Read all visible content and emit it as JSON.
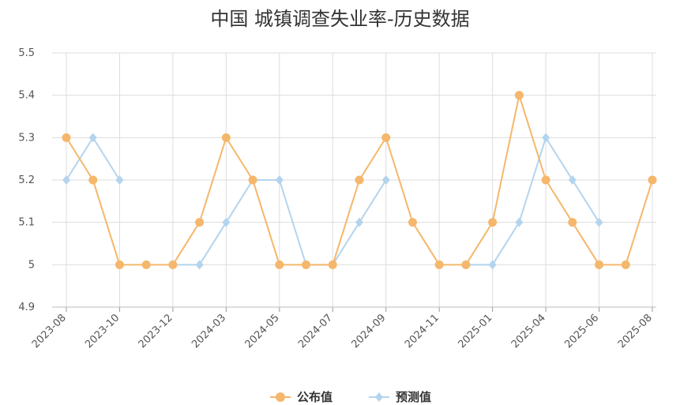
{
  "chart_data": {
    "type": "line",
    "title": "中国 城镇调查失业率-历史数据",
    "categories": [
      "2023-08",
      "2023-09",
      "2023-10",
      "2023-11",
      "2023-12",
      "2024-02",
      "2024-03",
      "2024-04",
      "2024-05",
      "2024-06",
      "2024-07",
      "2024-08",
      "2024-09",
      "2024-10",
      "2024-11",
      "2024-12",
      "2025-01",
      "2025-02",
      "2025-04",
      "2025-05",
      "2025-06",
      "2025-07",
      "2025-08"
    ],
    "x_tick_labels": [
      "2023-08",
      "2023-10",
      "2023-12",
      "2024-03",
      "2024-05",
      "2024-07",
      "2024-09",
      "2024-11",
      "2025-01",
      "2025-04",
      "2025-06",
      "2025-08"
    ],
    "x_tick_every": 2,
    "y_ticks": [
      "4.9",
      "5",
      "5.1",
      "5.2",
      "5.3",
      "5.4",
      "5.5"
    ],
    "ylim": [
      4.9,
      5.5
    ],
    "series": [
      {
        "name": "公布值",
        "color": "#F5B76B",
        "marker": "circle",
        "values": [
          5.3,
          5.2,
          5.0,
          5.0,
          5.0,
          5.1,
          5.3,
          5.2,
          5.0,
          5.0,
          5.0,
          5.2,
          5.3,
          5.1,
          5.0,
          5.0,
          5.1,
          5.4,
          5.2,
          5.1,
          5.0,
          5.0,
          5.2
        ]
      },
      {
        "name": "预测值",
        "color": "#B4D4EE",
        "marker": "diamond",
        "values": [
          5.2,
          5.3,
          5.2,
          null,
          5.0,
          5.0,
          5.1,
          5.2,
          5.2,
          5.0,
          5.0,
          5.1,
          5.2,
          null,
          null,
          5.0,
          5.0,
          5.1,
          5.3,
          5.2,
          5.1,
          null,
          null
        ]
      }
    ],
    "legend_position": "bottom-center",
    "grid": true
  }
}
